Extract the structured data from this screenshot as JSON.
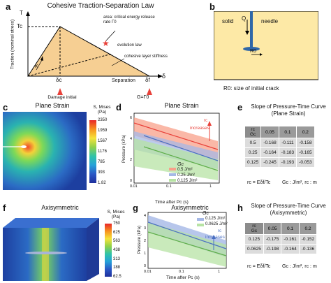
{
  "panels": {
    "a": {
      "label": "a",
      "title": "Cohesive Traction-Separation Law",
      "y_axis_label": "Traction (nominal stress)",
      "x_axis_label": "Separation",
      "T_label": "T",
      "Tc_label": "Tc",
      "delta_label": "δ",
      "deltac_label": "δc",
      "deltaf_label": "δf",
      "area_note": "area: critical energy release rate Γ0",
      "evolution_note": "evolution law",
      "stiffness_note": "cohesive layer stiffness",
      "K_label": "K",
      "damage_note": "Damage initial",
      "gamma_note": "G=Γ0"
    },
    "b": {
      "label": "b",
      "solid_label": "solid",
      "needle_label": "needle",
      "Q_label": "Q",
      "R0_label": "R0",
      "caption": "R0: size of initial crack"
    },
    "c": {
      "label": "c",
      "title": "Plane Strain",
      "legend_title": "S, Mises (Pa)",
      "scale_values": [
        "2350",
        "1959",
        "1567",
        "1176",
        "785",
        "393",
        "1.82"
      ]
    },
    "d": {
      "label": "d",
      "title": "Plane Strain",
      "ylabel": "Pressure (kPa)",
      "xlabel": "Time after Pc (s)",
      "annotation": "increases",
      "annotation_r": "rc",
      "legend_header": "Gc",
      "legend": [
        "0.5 J/m²",
        "0.25 J/m²",
        "0.125 J/m²"
      ],
      "xticks": [
        "0.01",
        "0.1",
        "1"
      ],
      "yticks": [
        "0",
        "2",
        "4",
        "6"
      ]
    },
    "e": {
      "label": "e",
      "title_line1": "Slope of Pressure-Time Curve",
      "title_line2": "(Plane Strain)",
      "corner_top": "rc",
      "corner_bottom": "Gc",
      "cols": [
        "0.05",
        "0.1",
        "0.2"
      ],
      "rows": [
        {
          "g": "0.5",
          "v": [
            "-0.168",
            "-0.111",
            "-0.158"
          ]
        },
        {
          "g": "0.25",
          "v": [
            "-0.164",
            "-0.183",
            "-0.165"
          ]
        },
        {
          "g": "0.125",
          "v": [
            "-0.245",
            "-0.193",
            "-0.053"
          ]
        }
      ],
      "formula": "rc = Eδf/Tc",
      "units": "Gc : J/m², rc : m"
    },
    "f": {
      "label": "f",
      "title": "Axisymmetric",
      "legend_title": "S, Mises (Pa)",
      "scale_values": [
        "750",
        "625",
        "563",
        "438",
        "313",
        "188",
        "62.5"
      ]
    },
    "g": {
      "label": "g",
      "title": "Axisymmetric",
      "ylabel": "Pressure (kPa)",
      "xlabel": "Time after Pc (s)",
      "annotation": "increases",
      "annotation_r": "rc",
      "legend_header": "Gc",
      "legend": [
        "0.125 J/m²",
        "0.0625 J/m²"
      ],
      "xticks": [
        "0.01",
        "0.1",
        "1"
      ],
      "yticks": [
        "0",
        "1",
        "2",
        "3",
        "4"
      ]
    },
    "h": {
      "label": "h",
      "title_line1": "Slope of Pressure-Time Curve",
      "title_line2": "(Axisymmetric)",
      "corner_top": "rc",
      "corner_bottom": "Gc",
      "cols": [
        "0.05",
        "0.1",
        "0.2"
      ],
      "rows": [
        {
          "g": "0.125",
          "v": [
            "-0.175",
            "-0.161",
            "-0.152"
          ]
        },
        {
          "g": "0.0625",
          "v": [
            "-0.198",
            "-0.164",
            "-0.136"
          ]
        }
      ],
      "formula": "rc = Eδf/Tc",
      "units": "Gc : J/m², rc : m"
    }
  },
  "colors": {
    "red": "#e8413a",
    "blue": "#4a6fc2",
    "green": "#7cc46a",
    "tan": "#f6cf93",
    "needle_blue": "#2f67a8"
  }
}
